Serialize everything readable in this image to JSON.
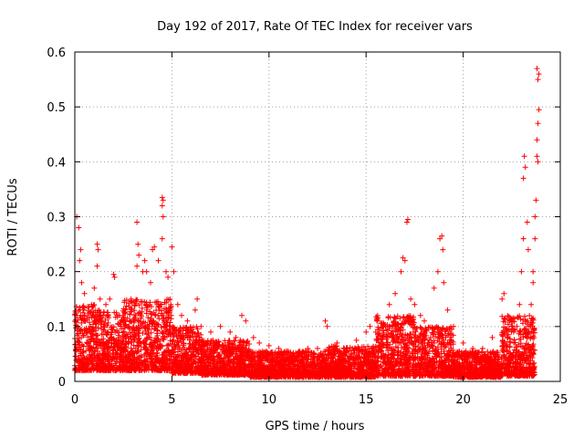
{
  "chart_data": {
    "type": "scatter",
    "title": "Day 192 of 2017, Rate Of TEC Index for receiver vars",
    "xlabel": "GPS time / hours",
    "ylabel": "ROTI / TECUs",
    "xlim": [
      0,
      25
    ],
    "ylim": [
      0,
      0.6
    ],
    "xticks": [
      0,
      5,
      10,
      15,
      20,
      25
    ],
    "yticks": [
      0,
      0.1,
      0.2,
      0.3,
      0.4,
      0.5,
      0.6
    ],
    "xtick_labels": [
      "0",
      "5",
      "10",
      "15",
      "20",
      "25"
    ],
    "ytick_labels": [
      "0",
      "0.1",
      "0.2",
      "0.3",
      "0.4",
      "0.5",
      "0.6"
    ],
    "grid": true,
    "marker": "+",
    "color": "#ff0000",
    "series": [
      {
        "name": "vars",
        "points": [
          [
            0.1,
            0.3
          ],
          [
            0.2,
            0.28
          ],
          [
            0.3,
            0.24
          ],
          [
            0.25,
            0.22
          ],
          [
            0.35,
            0.18
          ],
          [
            0.5,
            0.16
          ],
          [
            0.3,
            0.12
          ],
          [
            0.15,
            0.1
          ],
          [
            1.15,
            0.25
          ],
          [
            1.2,
            0.24
          ],
          [
            1.15,
            0.21
          ],
          [
            1.0,
            0.17
          ],
          [
            1.3,
            0.15
          ],
          [
            1.6,
            0.14
          ],
          [
            1.8,
            0.15
          ],
          [
            2.0,
            0.195
          ],
          [
            2.05,
            0.19
          ],
          [
            2.3,
            0.12
          ],
          [
            2.6,
            0.13
          ],
          [
            2.9,
            0.15
          ],
          [
            3.2,
            0.29
          ],
          [
            3.25,
            0.25
          ],
          [
            3.3,
            0.23
          ],
          [
            3.2,
            0.21
          ],
          [
            3.5,
            0.2
          ],
          [
            3.6,
            0.22
          ],
          [
            3.7,
            0.2
          ],
          [
            3.9,
            0.18
          ],
          [
            4.0,
            0.24
          ],
          [
            4.1,
            0.245
          ],
          [
            4.3,
            0.22
          ],
          [
            4.5,
            0.335
          ],
          [
            4.55,
            0.33
          ],
          [
            4.5,
            0.32
          ],
          [
            4.55,
            0.3
          ],
          [
            4.5,
            0.26
          ],
          [
            4.7,
            0.2
          ],
          [
            4.8,
            0.19
          ],
          [
            5.0,
            0.245
          ],
          [
            5.1,
            0.2
          ],
          [
            5.3,
            0.14
          ],
          [
            5.5,
            0.12
          ],
          [
            5.8,
            0.11
          ],
          [
            6.2,
            0.13
          ],
          [
            6.3,
            0.15
          ],
          [
            6.5,
            0.1
          ],
          [
            7.0,
            0.09
          ],
          [
            7.5,
            0.1
          ],
          [
            8.0,
            0.09
          ],
          [
            8.3,
            0.08
          ],
          [
            8.6,
            0.12
          ],
          [
            8.8,
            0.11
          ],
          [
            9.2,
            0.08
          ],
          [
            9.5,
            0.07
          ],
          [
            10.0,
            0.065
          ],
          [
            10.5,
            0.06
          ],
          [
            11.0,
            0.055
          ],
          [
            11.5,
            0.05
          ],
          [
            12.0,
            0.06
          ],
          [
            12.5,
            0.06
          ],
          [
            12.9,
            0.11
          ],
          [
            13.0,
            0.1
          ],
          [
            13.5,
            0.07
          ],
          [
            14.0,
            0.06
          ],
          [
            14.5,
            0.075
          ],
          [
            15.0,
            0.09
          ],
          [
            15.2,
            0.1
          ],
          [
            15.5,
            0.09
          ],
          [
            16.0,
            0.1
          ],
          [
            16.2,
            0.14
          ],
          [
            16.5,
            0.16
          ],
          [
            16.8,
            0.2
          ],
          [
            16.9,
            0.225
          ],
          [
            17.0,
            0.22
          ],
          [
            17.1,
            0.29
          ],
          [
            17.15,
            0.295
          ],
          [
            17.3,
            0.15
          ],
          [
            17.5,
            0.14
          ],
          [
            17.8,
            0.12
          ],
          [
            18.0,
            0.11
          ],
          [
            18.5,
            0.17
          ],
          [
            18.7,
            0.2
          ],
          [
            18.8,
            0.26
          ],
          [
            18.9,
            0.265
          ],
          [
            18.95,
            0.24
          ],
          [
            19.0,
            0.18
          ],
          [
            19.2,
            0.13
          ],
          [
            19.5,
            0.1
          ],
          [
            20.0,
            0.07
          ],
          [
            20.5,
            0.06
          ],
          [
            21.0,
            0.06
          ],
          [
            21.5,
            0.08
          ],
          [
            22.0,
            0.15
          ],
          [
            22.1,
            0.16
          ],
          [
            22.5,
            0.1
          ],
          [
            22.6,
            0.09
          ],
          [
            22.9,
            0.14
          ],
          [
            23.0,
            0.2
          ],
          [
            23.1,
            0.26
          ],
          [
            23.1,
            0.37
          ],
          [
            23.15,
            0.41
          ],
          [
            23.2,
            0.39
          ],
          [
            23.3,
            0.29
          ],
          [
            23.35,
            0.24
          ],
          [
            23.6,
            0.2
          ],
          [
            23.7,
            0.3
          ],
          [
            23.75,
            0.33
          ],
          [
            23.8,
            0.41
          ],
          [
            23.85,
            0.4
          ],
          [
            23.8,
            0.44
          ],
          [
            23.85,
            0.47
          ],
          [
            23.9,
            0.495
          ],
          [
            23.85,
            0.55
          ],
          [
            23.8,
            0.57
          ],
          [
            23.9,
            0.56
          ],
          [
            23.7,
            0.26
          ],
          [
            23.6,
            0.18
          ],
          [
            23.5,
            0.14
          ]
        ]
      }
    ],
    "noise_baseline": {
      "description_for_rendering_only": false,
      "segments": [
        {
          "x0": 0.0,
          "x1": 1.0,
          "lo": 0.02,
          "hi": 0.14
        },
        {
          "x0": 1.0,
          "x1": 2.5,
          "lo": 0.02,
          "hi": 0.13
        },
        {
          "x0": 2.5,
          "x1": 5.0,
          "lo": 0.02,
          "hi": 0.15
        },
        {
          "x0": 5.0,
          "x1": 6.5,
          "lo": 0.015,
          "hi": 0.1
        },
        {
          "x0": 6.5,
          "x1": 9.0,
          "lo": 0.012,
          "hi": 0.075
        },
        {
          "x0": 9.0,
          "x1": 13.0,
          "lo": 0.008,
          "hi": 0.055
        },
        {
          "x0": 13.0,
          "x1": 15.5,
          "lo": 0.008,
          "hi": 0.065
        },
        {
          "x0": 15.5,
          "x1": 17.5,
          "lo": 0.01,
          "hi": 0.12
        },
        {
          "x0": 17.5,
          "x1": 19.5,
          "lo": 0.01,
          "hi": 0.1
        },
        {
          "x0": 19.5,
          "x1": 22.0,
          "lo": 0.008,
          "hi": 0.055
        },
        {
          "x0": 22.0,
          "x1": 23.7,
          "lo": 0.01,
          "hi": 0.12
        }
      ]
    }
  }
}
